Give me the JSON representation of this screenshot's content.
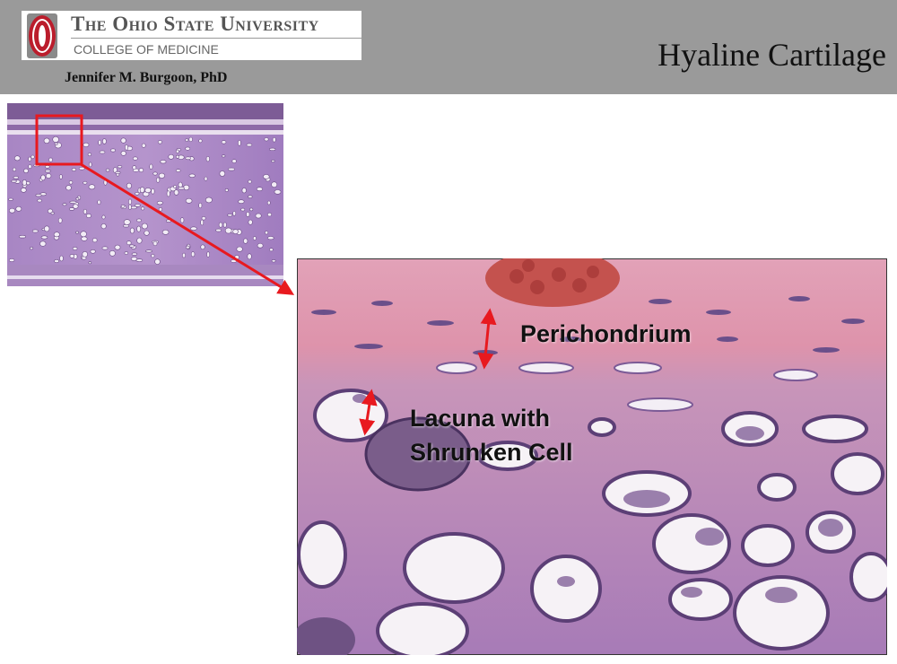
{
  "header": {
    "university": "The Ohio State University",
    "college": "COLLEGE OF MEDICINE",
    "author": "Jennifer M. Burgoon, PhD",
    "title": "Hyaline Cartilage"
  },
  "labels": {
    "perichondrium": "Perichondrium",
    "lacuna_line1": "Lacuna with",
    "lacuna_line2": "Shrunken Cell"
  },
  "colors": {
    "header_bg": "#9a9a9a",
    "ohio_red": "#bb1d2c",
    "arrow_red": "#e8191f",
    "tissue_purple": "#9a6fb3",
    "tissue_pink": "#d98fa6"
  }
}
